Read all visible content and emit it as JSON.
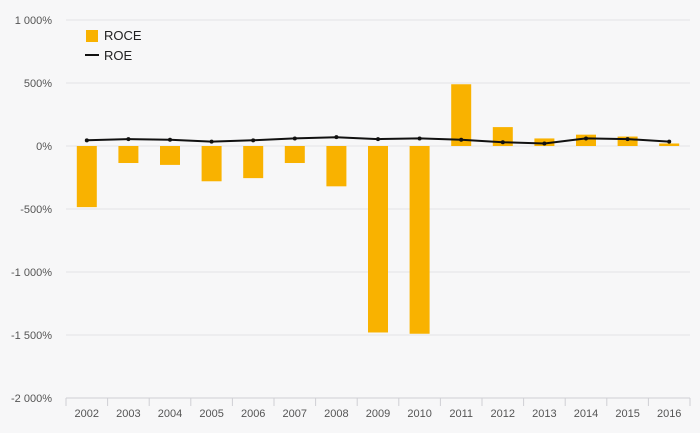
{
  "chart_data": {
    "type": "bar",
    "categories": [
      "2002",
      "2003",
      "2004",
      "2005",
      "2006",
      "2007",
      "2008",
      "2009",
      "2010",
      "2011",
      "2012",
      "2013",
      "2014",
      "2015",
      "2016"
    ],
    "series": [
      {
        "name": "ROCE",
        "type": "bar",
        "color": "#f9b200",
        "values": [
          -485,
          -135,
          -150,
          -280,
          -255,
          -135,
          -320,
          -1480,
          -1490,
          490,
          150,
          60,
          90,
          75,
          20
        ]
      },
      {
        "name": "ROE",
        "type": "line",
        "color": "#111111",
        "values": [
          45,
          55,
          50,
          35,
          45,
          60,
          70,
          55,
          60,
          50,
          30,
          20,
          60,
          55,
          35
        ]
      }
    ],
    "y_ticks": [
      {
        "value": 1000,
        "label": "1 000%"
      },
      {
        "value": 500,
        "label": "500%"
      },
      {
        "value": 0,
        "label": "0%"
      },
      {
        "value": -500,
        "label": "-500%"
      },
      {
        "value": -1000,
        "label": "-1 000%"
      },
      {
        "value": -1500,
        "label": "-1 500%"
      },
      {
        "value": -2000,
        "label": "-2 000%"
      }
    ],
    "ylim": [
      -2000,
      1000
    ],
    "legend": {
      "position": "top-left",
      "entries": [
        {
          "label": "ROCE",
          "symbol": "square",
          "color": "#f9b200"
        },
        {
          "label": "ROE",
          "symbol": "line",
          "color": "#111111"
        }
      ]
    },
    "grid": true,
    "title": "",
    "xlabel": "",
    "ylabel": ""
  }
}
